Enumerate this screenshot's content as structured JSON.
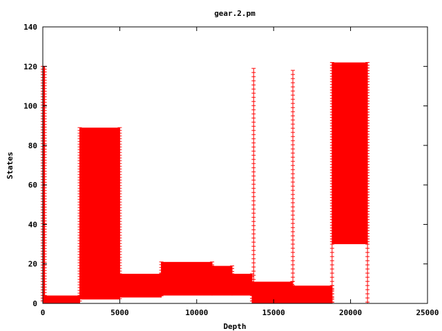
{
  "chart_data": {
    "type": "area",
    "title": "gear.2.pm",
    "xlabel": "Depth",
    "ylabel": "States",
    "xlim": [
      0,
      25000
    ],
    "ylim": [
      0,
      140
    ],
    "x_ticks": [
      0,
      5000,
      10000,
      15000,
      20000,
      25000
    ],
    "y_ticks": [
      0,
      20,
      40,
      60,
      80,
      100,
      120,
      140
    ],
    "grid": false,
    "legend": "none",
    "marker": "plus",
    "color": "#ff0000",
    "regions": [
      {
        "x_start": 0,
        "x_end": 120,
        "y_low": 0,
        "y_high": 120
      },
      {
        "x_start": 120,
        "x_end": 2400,
        "y_low": 0,
        "y_high": 4
      },
      {
        "x_start": 2400,
        "x_end": 5000,
        "y_low": 2,
        "y_high": 89
      },
      {
        "x_start": 5000,
        "x_end": 7700,
        "y_low": 3,
        "y_high": 15
      },
      {
        "x_start": 7700,
        "x_end": 11000,
        "y_low": 4,
        "y_high": 21
      },
      {
        "x_start": 11000,
        "x_end": 12300,
        "y_low": 4,
        "y_high": 19
      },
      {
        "x_start": 12300,
        "x_end": 13600,
        "y_low": 4,
        "y_high": 15
      },
      {
        "x_start": 13600,
        "x_end": 16200,
        "y_low": 0,
        "y_high": 11
      },
      {
        "x_start": 16200,
        "x_end": 18800,
        "y_low": 0,
        "y_high": 9
      },
      {
        "x_start": 18800,
        "x_end": 21100,
        "y_low": 30,
        "y_high": 122
      }
    ],
    "spikes": [
      {
        "x": 13700,
        "y_low": 0,
        "y_high": 119
      },
      {
        "x": 16250,
        "y_low": 0,
        "y_high": 118
      },
      {
        "x": 18800,
        "y_low": 0,
        "y_high": 30
      },
      {
        "x": 21100,
        "y_low": 0,
        "y_high": 30
      }
    ]
  }
}
